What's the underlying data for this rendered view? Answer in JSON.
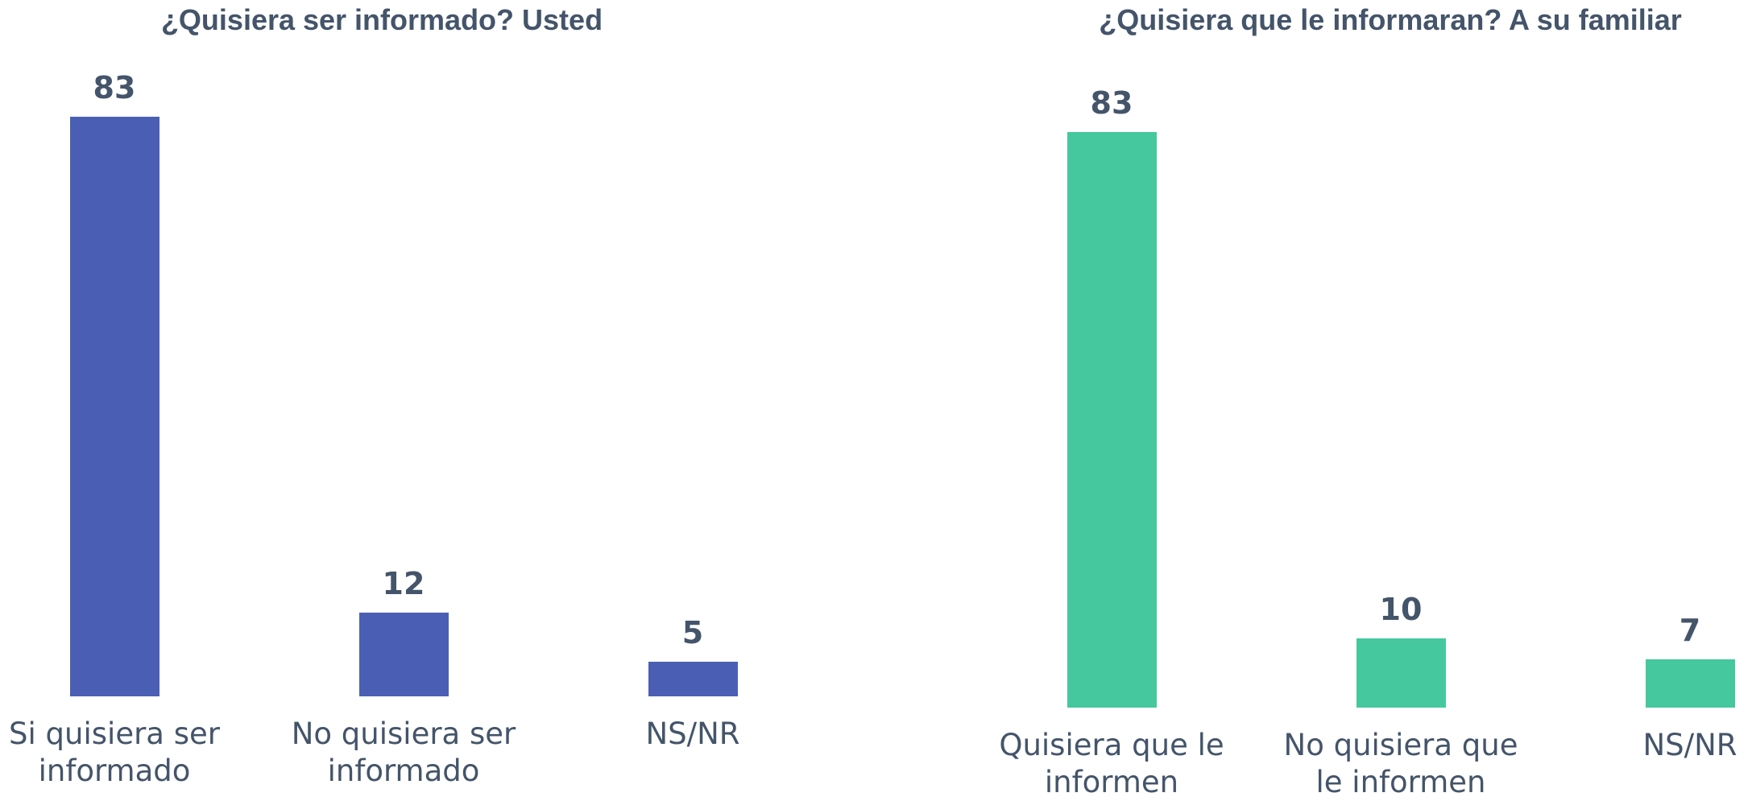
{
  "chart_data": [
    {
      "type": "bar",
      "title": "¿Quisiera ser informado? Usted",
      "categories": [
        "Si quisiera ser informado",
        "No quisiera ser informado",
        "NS/NR"
      ],
      "values": [
        83,
        12,
        5
      ],
      "color": "#4a5fb4"
    },
    {
      "type": "bar",
      "title": "¿Quisiera que le informaran? A su familiar",
      "categories": [
        "Quisiera que le informen",
        "No quisiera que le informen",
        "NS/NR"
      ],
      "values": [
        83,
        10,
        7
      ],
      "color": "#45c89e"
    }
  ]
}
